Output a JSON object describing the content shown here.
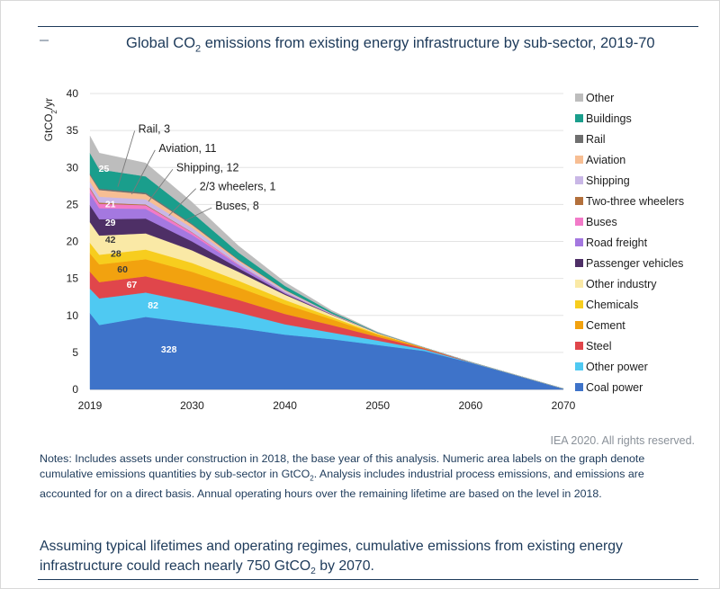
{
  "chart_data": {
    "type": "area",
    "stacked": true,
    "title_main": "Global CO",
    "title_sub": "2",
    "title_rest": " emissions from existing energy infrastructure by sub-sector, 2019-70",
    "ylabel": "GtCO",
    "ylabel_sub": "2",
    "ylabel_tail": "/yr",
    "ylim": [
      0,
      40
    ],
    "xlim": [
      2019,
      2070
    ],
    "yticks": [
      "0",
      "5",
      "10",
      "15",
      "20",
      "25",
      "30",
      "35",
      "40"
    ],
    "xticks": [
      "2019",
      "2030",
      "2040",
      "2050",
      "2060",
      "2070"
    ],
    "x": [
      2019,
      2020,
      2025,
      2030,
      2035,
      2040,
      2045,
      2050,
      2055,
      2060,
      2065,
      2070
    ],
    "series": [
      {
        "name": "Coal power",
        "color": "#3e73c9",
        "values": [
          10.3,
          8.7,
          9.8,
          9.0,
          8.3,
          7.4,
          6.8,
          6.0,
          5.2,
          3.6,
          1.9,
          0.1
        ]
      },
      {
        "name": "Other power",
        "color": "#4fc9f2",
        "values": [
          3.3,
          3.6,
          3.3,
          2.8,
          2.1,
          1.4,
          0.9,
          0.6,
          0.2,
          0.05,
          0.0,
          0.0
        ]
      },
      {
        "name": "Steel",
        "color": "#e0464b",
        "values": [
          2.3,
          2.2,
          2.2,
          2.0,
          1.7,
          1.4,
          1.0,
          0.5,
          0.15,
          0.05,
          0.0,
          0.0
        ]
      },
      {
        "name": "Cement",
        "color": "#f2a20f",
        "values": [
          2.5,
          2.4,
          2.3,
          2.1,
          1.7,
          1.3,
          0.8,
          0.3,
          0.1,
          0.0,
          0.0,
          0.0
        ]
      },
      {
        "name": "Chemicals",
        "color": "#f7cd1e",
        "values": [
          1.4,
          1.3,
          1.3,
          1.2,
          0.9,
          0.6,
          0.3,
          0.1,
          0.0,
          0.0,
          0.0,
          0.0
        ]
      },
      {
        "name": "Other industry",
        "color": "#fae9a6",
        "values": [
          2.8,
          2.6,
          2.2,
          1.7,
          1.2,
          0.7,
          0.3,
          0.1,
          0.0,
          0.0,
          0.0,
          0.0
        ]
      },
      {
        "name": "Passenger vehicles",
        "color": "#4e2f66",
        "values": [
          2.3,
          2.2,
          2.0,
          1.2,
          0.5,
          0.15,
          0.05,
          0.0,
          0.0,
          0.0,
          0.0,
          0.0
        ]
      },
      {
        "name": "Road freight",
        "color": "#a478e0",
        "values": [
          1.6,
          1.5,
          1.3,
          0.9,
          0.4,
          0.15,
          0.05,
          0.0,
          0.0,
          0.0,
          0.0,
          0.0
        ]
      },
      {
        "name": "Buses",
        "color": "#f27ac8",
        "values": [
          0.6,
          0.6,
          0.5,
          0.3,
          0.1,
          0.0,
          0.0,
          0.0,
          0.0,
          0.0,
          0.0,
          0.0
        ]
      },
      {
        "name": "Two-three wheelers",
        "color": "#b3703c",
        "values": [
          0.15,
          0.15,
          0.1,
          0.05,
          0.0,
          0.0,
          0.0,
          0.0,
          0.0,
          0.0,
          0.0,
          0.0
        ]
      },
      {
        "name": "Shipping",
        "color": "#c9b7e6",
        "values": [
          0.8,
          0.8,
          0.7,
          0.6,
          0.4,
          0.25,
          0.1,
          0.05,
          0.0,
          0.0,
          0.0,
          0.0
        ]
      },
      {
        "name": "Aviation",
        "color": "#f7be93",
        "values": [
          0.9,
          0.9,
          0.7,
          0.4,
          0.2,
          0.1,
          0.0,
          0.0,
          0.0,
          0.0,
          0.0,
          0.0
        ]
      },
      {
        "name": "Rail",
        "color": "#6f6f6f",
        "values": [
          0.2,
          0.2,
          0.2,
          0.15,
          0.1,
          0.05,
          0.0,
          0.0,
          0.0,
          0.0,
          0.0,
          0.0
        ]
      },
      {
        "name": "Buildings",
        "color": "#1a9e8c",
        "values": [
          2.8,
          2.6,
          2.2,
          1.5,
          0.9,
          0.5,
          0.2,
          0.05,
          0.0,
          0.0,
          0.0,
          0.0
        ]
      },
      {
        "name": "Other",
        "color": "#bdbdbd",
        "values": [
          2.3,
          2.2,
          1.8,
          1.4,
          0.9,
          0.5,
          0.2,
          0.05,
          0.0,
          0.0,
          0.0,
          0.0
        ]
      }
    ],
    "area_labels": [
      {
        "series": "Coal power",
        "text": "328",
        "x": 2027.5,
        "y": 5.5
      },
      {
        "series": "Other power",
        "text": "82",
        "x": 2025.8,
        "y": 11.4
      },
      {
        "series": "Steel",
        "text": "67",
        "x": 2023.5,
        "y": 14.2
      },
      {
        "series": "Cement",
        "text": "60",
        "x": 2022.5,
        "y": 16.3
      },
      {
        "series": "Chemicals",
        "text": "28",
        "x": 2021.8,
        "y": 18.4
      },
      {
        "series": "Other industry",
        "text": "42",
        "x": 2021.2,
        "y": 20.3
      },
      {
        "series": "Passenger vehicles",
        "text": "29",
        "x": 2021.2,
        "y": 22.6
      },
      {
        "series": "Road freight",
        "text": "21",
        "x": 2021.2,
        "y": 25.1
      },
      {
        "series": "Buildings",
        "text": "25",
        "x": 2020.5,
        "y": 29.9
      },
      {
        "series": "Other",
        "text": "30",
        "x": 2020.8,
        "y": 32.4
      }
    ],
    "callouts": [
      {
        "text": "Rail, 3",
        "label_x": 2024.2,
        "label_y": 35.2,
        "point_x": 2022.0,
        "point_y": 27.4
      },
      {
        "text": "Aviation, 11",
        "label_x": 2026.4,
        "label_y": 32.6,
        "point_x": 2023.5,
        "point_y": 26.4
      },
      {
        "text": "Shipping, 12",
        "label_x": 2028.3,
        "label_y": 30.0,
        "point_x": 2025.3,
        "point_y": 25.4
      },
      {
        "text": "2/3 wheelers, 1",
        "label_x": 2030.8,
        "label_y": 27.4,
        "point_x": 2027.5,
        "point_y": 23.5
      },
      {
        "text": "Buses, 8",
        "label_x": 2032.5,
        "label_y": 24.8,
        "point_x": 2029.2,
        "point_y": 22.8
      }
    ],
    "legend": [
      "Other",
      "Buildings",
      "Rail",
      "Aviation",
      "Shipping",
      "Two-three wheelers",
      "Buses",
      "Road freight",
      "Passenger vehicles",
      "Other industry",
      "Chemicals",
      "Cement",
      "Steel",
      "Other power",
      "Coal power"
    ],
    "legend_position": "right"
  },
  "credit": "IEA 2020. All rights reserved.",
  "notes": {
    "pre": "Notes: Includes assets under construction in 2018, the base year of this analysis. Numeric area labels on the graph denote cumulative emissions quantities by sub-sector in GtCO",
    "sub": "2",
    "post": ". Analysis includes industrial process emissions, and emissions are accounted for on a direct basis. Annual operating hours over the remaining lifetime are based on the level in 2018."
  },
  "summary": {
    "pre": "Assuming typical lifetimes and operating regimes, cumulative emissions from existing energy infrastructure could reach nearly 750 GtCO",
    "sub": "2",
    "post": " by 2070."
  }
}
